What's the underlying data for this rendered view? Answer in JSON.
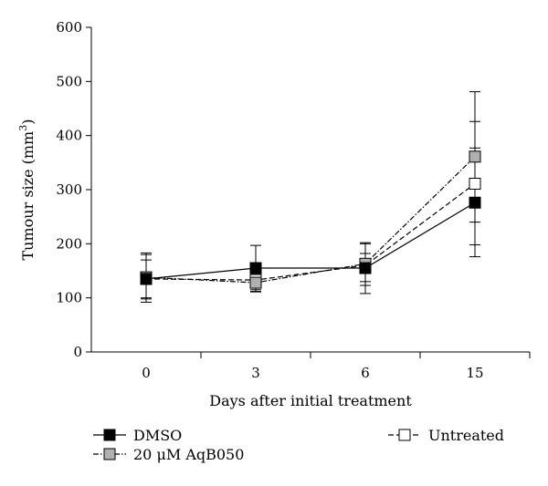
{
  "chart_data": {
    "type": "line",
    "title": "",
    "xlabel": "Days after initial treatment",
    "ylabel": "Tumour size (mm",
    "ylabel_sup": "3",
    "ylabel_close": ")",
    "categories": [
      "0",
      "3",
      "6",
      "15"
    ],
    "ylim": [
      0,
      600
    ],
    "yticks": [
      "0",
      "100",
      "200",
      "300",
      "400",
      "500",
      "600"
    ],
    "grid": false,
    "legend_position": "bottom",
    "series": [
      {
        "name": "DMSO",
        "values": [
          135,
          155,
          155,
          276
        ],
        "error_low": [
          100,
          115,
          130,
          176
        ],
        "error_high": [
          170,
          197,
          182,
          377
        ],
        "marker_fill": "#000000",
        "line_style": "solid"
      },
      {
        "name": "20 μM AqB050",
        "values": [
          138,
          128,
          163,
          361
        ],
        "error_low": [
          98,
          111,
          108,
          240
        ],
        "error_high": [
          180,
          148,
          202,
          481
        ],
        "marker_fill": "#b0b0b0",
        "line_style": "dashdot"
      },
      {
        "name": "Untreated",
        "values": [
          135,
          133,
          160,
          311
        ],
        "error_low": [
          92,
          112,
          123,
          198
        ],
        "error_high": [
          183,
          152,
          200,
          426
        ],
        "marker_fill": "#ffffff",
        "line_style": "dashed"
      }
    ]
  }
}
